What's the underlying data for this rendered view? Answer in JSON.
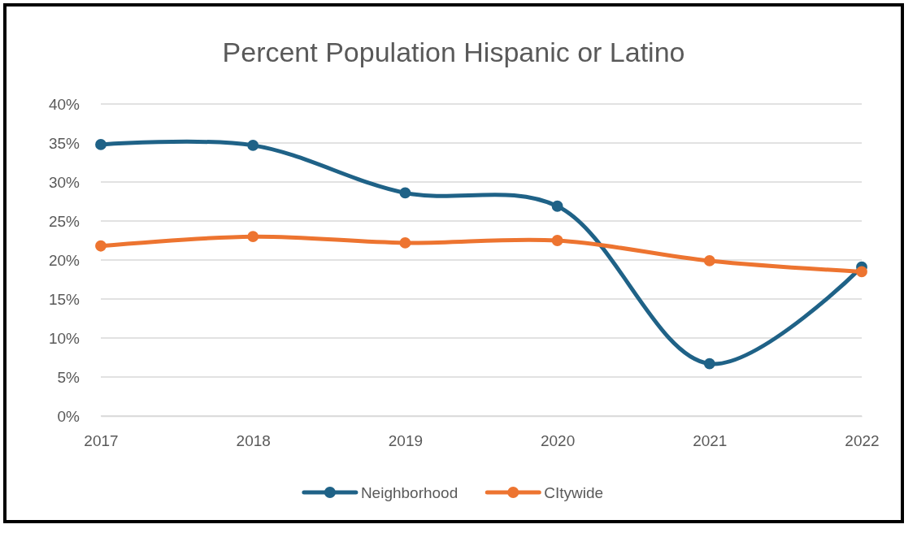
{
  "chart_data": {
    "type": "line",
    "title": "Percent Population Hispanic or Latino",
    "categories": [
      "2017",
      "2018",
      "2019",
      "2020",
      "2021",
      "2022"
    ],
    "series": [
      {
        "name": "Neighborhood",
        "color": "#1f6287",
        "values": [
          34.8,
          34.7,
          28.6,
          26.9,
          6.7,
          19.1
        ]
      },
      {
        "name": "CItywide",
        "color": "#ed7430",
        "values": [
          21.8,
          23.0,
          22.2,
          22.5,
          19.9,
          18.5
        ]
      }
    ],
    "ylim": [
      0,
      40
    ],
    "yticks": [
      {
        "value": 0,
        "label": "0%"
      },
      {
        "value": 5,
        "label": "5%"
      },
      {
        "value": 10,
        "label": "10%"
      },
      {
        "value": 15,
        "label": "15%"
      },
      {
        "value": 20,
        "label": "20%"
      },
      {
        "value": 25,
        "label": "25%"
      },
      {
        "value": 30,
        "label": "30%"
      },
      {
        "value": 35,
        "label": "35%"
      },
      {
        "value": 40,
        "label": "40%"
      }
    ],
    "grid": "y",
    "legend": "bottom",
    "marker": "circle",
    "line_style": "solid"
  }
}
